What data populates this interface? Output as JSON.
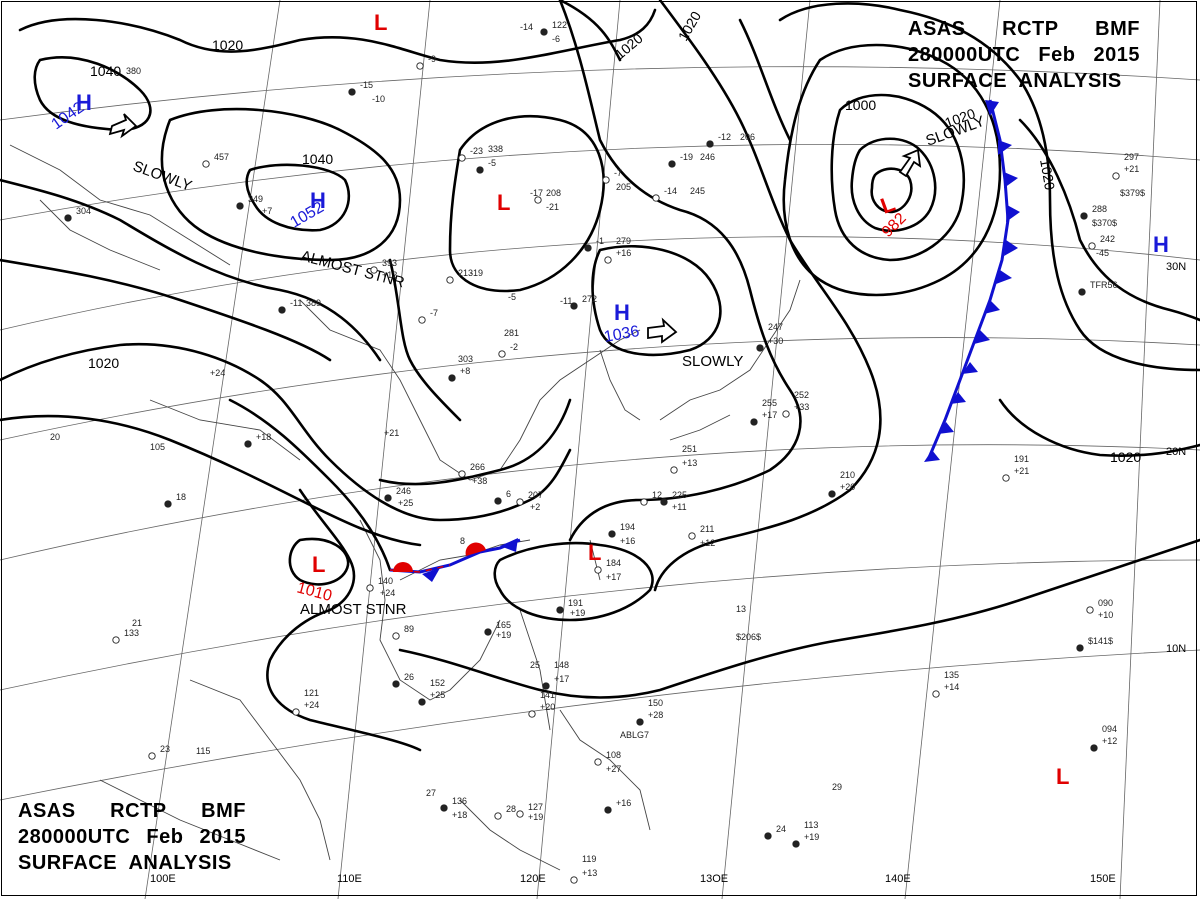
{
  "header": {
    "line1": [
      "ASAS",
      "RCTP",
      "BMF"
    ],
    "line2": [
      "280000UTC",
      "Feb",
      "2015"
    ],
    "line3": "SURFACE  ANALYSIS"
  },
  "colors": {
    "high": "#1a1ad8",
    "low": "#e00000",
    "isobar": "#000000",
    "cold_front": "#1010d0",
    "warm_front": "#e00000",
    "grid": "#555555"
  },
  "grid_labels": {
    "lon": [
      "110E",
      "120E",
      "13OE",
      "140E",
      "150E",
      "100E"
    ],
    "lat": [
      "30N",
      "20N",
      "10N"
    ]
  },
  "isobar_labels": [
    "1020",
    "1020",
    "1040",
    "1020",
    "1040",
    "1020",
    "1020",
    "1000",
    "1020",
    "1020"
  ],
  "pressure_centers": [
    {
      "type": "H",
      "value": "1042",
      "motion": "SLOWLY"
    },
    {
      "type": "H",
      "value": "1052",
      "motion": "ALMOST STNR"
    },
    {
      "type": "H",
      "value": "1036",
      "motion": "SLOWLY"
    },
    {
      "type": "L",
      "value": "982",
      "motion": "SLOWLY"
    },
    {
      "type": "L",
      "value": "1010",
      "motion": "ALMOST STNR"
    },
    {
      "type": "L",
      "value": ""
    },
    {
      "type": "L",
      "value": ""
    },
    {
      "type": "L",
      "value": ""
    },
    {
      "type": "L",
      "value": ""
    },
    {
      "type": "H",
      "value": ""
    }
  ],
  "station_plots": [
    "122",
    "-6",
    "-9",
    "-14",
    "-15",
    "-10",
    "-23",
    "338",
    "-5",
    "-17",
    "208",
    "-21",
    "-19",
    "246",
    "-14",
    "245",
    "-12",
    "206",
    "-7",
    "205",
    "-1",
    "279",
    "+16",
    "-5",
    "272",
    "-11",
    "213",
    "-19",
    "349",
    "+7",
    "393",
    "+12",
    "-11",
    "389",
    "-7",
    "303",
    "+8",
    "281",
    "-2",
    "+24",
    "+18",
    "+21",
    "266",
    "+38",
    "246",
    "+25",
    "207",
    "+2",
    "225",
    "+11",
    "211",
    "+12",
    "194",
    "+16",
    "184",
    "+17",
    "191",
    "+19",
    "140",
    "+24",
    "165",
    "+19",
    "89",
    "152",
    "+25",
    "121",
    "+24",
    "148",
    "+17",
    "141",
    "+20",
    "150",
    "+28",
    "ABLG7",
    "108",
    "+27",
    "136",
    "+18",
    "127",
    "+19",
    "+16",
    "119",
    "+13",
    "113",
    "+19",
    "$206$",
    "090",
    "+10",
    "$141$",
    "135",
    "+14",
    "094",
    "+12",
    "297",
    "+21",
    "$379$",
    "288",
    "$370$",
    "242",
    "-45",
    "TFR56",
    "191",
    "+21",
    "210",
    "+20",
    "252",
    "+33",
    "255",
    "+17",
    "251",
    "+13",
    "247",
    "+30",
    "105",
    "133",
    "115",
    "304",
    "380",
    "457",
    "20",
    "18",
    "21",
    "23",
    "25",
    "26",
    "27",
    "28",
    "29",
    "24",
    "13",
    "12",
    "8",
    "6"
  ]
}
